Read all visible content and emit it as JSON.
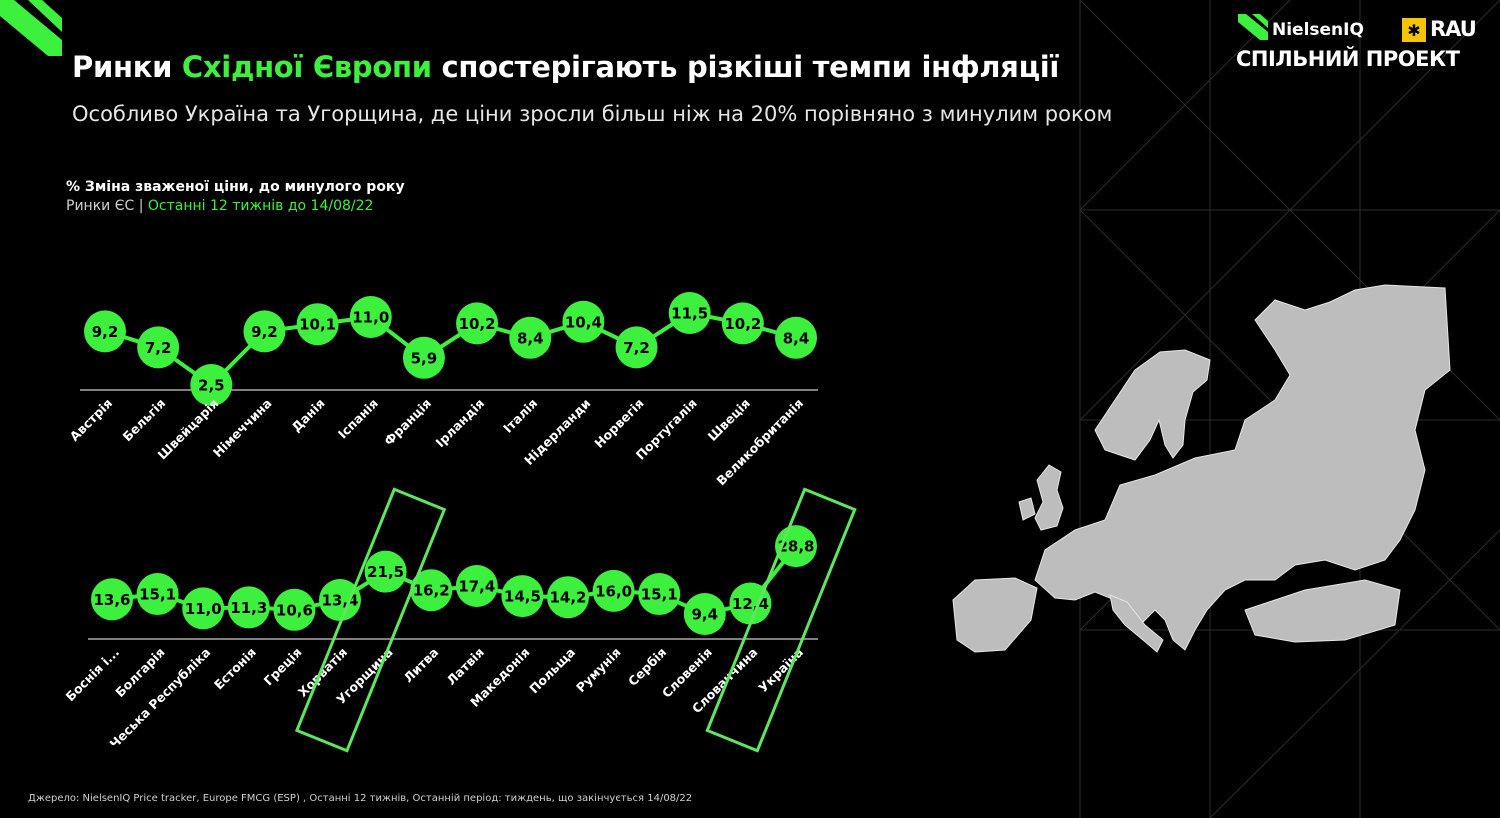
{
  "header": {
    "title_pre": "Ринки ",
    "title_highlight": "Східної Європи",
    "title_post": " спостерігають різкіші темпи інфляції",
    "subtitle": "Особливо Україна та Угорщина, де ціни зросли більш ніж на 20% порівняно з минулим роком"
  },
  "chart_header": {
    "title": "% Зміна зваженої ціни, до минулого року",
    "sub_prefix": "Ринки ЄС | ",
    "sub_period": "Останні 12 тижнів до 14/08/22"
  },
  "brand": {
    "name": "NielsenIQ",
    "partner": "RAU",
    "tagline": "СПІЛЬНИЙ ПРОЕКТ"
  },
  "source": "Джерело: NielsenIQ Price tracker, Europe FMCG (ESP) , Останні 12 тижнів, Останній період: тиждень, що закінчується 14/08/22",
  "colors": {
    "accent": "#3ef03e",
    "background": "#000000",
    "map": "#bdbdbd",
    "highlight_box": "#5ee65e"
  },
  "chart_data": [
    {
      "type": "line",
      "categories": [
        "Австрія",
        "Бельгія",
        "Швейцарія",
        "Німеччина",
        "Данія",
        "Іспанія",
        "Франція",
        "Ірландія",
        "Італія",
        "Нідерланди",
        "Норвегія",
        "Португалія",
        "Швеція",
        "Великобританія"
      ],
      "values": [
        9.2,
        7.2,
        2.5,
        9.2,
        10.1,
        11.0,
        5.9,
        10.2,
        8.4,
        10.4,
        7.2,
        11.5,
        10.2,
        8.4
      ],
      "labels": [
        "9,2",
        "7,2",
        "2,5",
        "9,2",
        "10,1",
        "11,0",
        "5,9",
        "10,2",
        "8,4",
        "10,4",
        "7,2",
        "11,5",
        "10,2",
        "8,4"
      ]
    },
    {
      "type": "line",
      "categories": [
        "Боснія і...",
        "Болгарія",
        "Чеська Республіка",
        "Естонія",
        "Греція",
        "Хорватія",
        "Угорщина",
        "Литва",
        "Латвія",
        "Македонія",
        "Польща",
        "Румунія",
        "Сербія",
        "Словенія",
        "Словаччина",
        "Україна"
      ],
      "values": [
        13.6,
        15.1,
        11.0,
        11.3,
        10.6,
        13.4,
        21.5,
        16.2,
        17.4,
        14.5,
        14.2,
        16.0,
        15.1,
        9.4,
        12.4,
        28.8
      ],
      "labels": [
        "13,6",
        "15,1",
        "11,0",
        "11,3",
        "10,6",
        "13,4",
        "21,5",
        "16,2",
        "17,4",
        "14,5",
        "14,2",
        "16,0",
        "15,1",
        "9,4",
        "12,4",
        "28,8"
      ],
      "highlighted": [
        "Угорщина",
        "Україна"
      ]
    }
  ]
}
